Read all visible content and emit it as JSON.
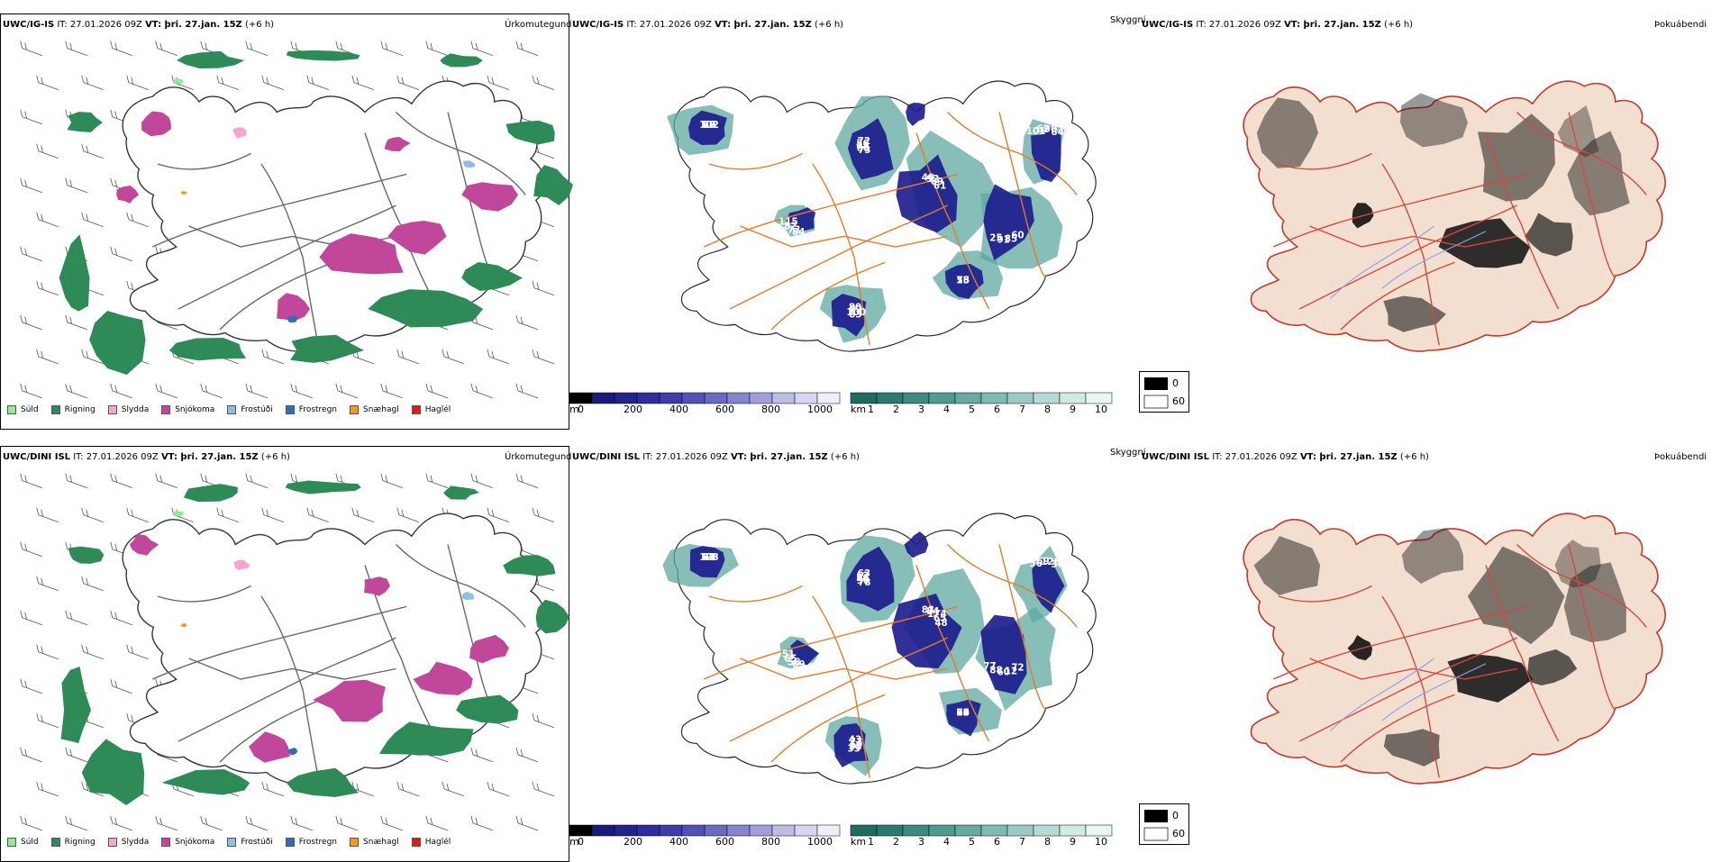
{
  "rows": [
    {
      "model": "UWC/IG-IS",
      "it_label": "IT: 27.01.2026 09Z",
      "vt_label": "VT: þri. 27.jan. 15Z",
      "lead": "(+6 h)",
      "titles": [
        "Úrkomutegund",
        "Skyggni",
        "Þokuábendi"
      ],
      "cloud_labels": [
        "62",
        "73",
        "40",
        "60",
        "55",
        "80",
        "84",
        "101",
        "60",
        "66",
        "92",
        "85",
        "75",
        "82",
        "73",
        "62",
        "102",
        "65",
        "69",
        "91",
        "78",
        "100",
        "82",
        "90",
        "28",
        "56",
        "61",
        "25",
        "15",
        "83",
        "115",
        "84",
        "73",
        "72"
      ],
      "visibility_labels": []
    },
    {
      "model": "UWC/DINI ISL",
      "it_label": "IT: 27.01.2026 09Z",
      "vt_label": "VT: þri. 27.jan. 15Z",
      "lead": "(+6 h)",
      "titles": [
        "Úrkomutegund",
        "Skyggni",
        "Þokuábendi"
      ],
      "cloud_labels": [
        "73",
        "78",
        "83",
        "72",
        "29",
        "43",
        "69",
        "56",
        "77",
        "90",
        "84",
        "12",
        "63",
        "73",
        "58",
        "69",
        "91",
        "56",
        "174",
        "60",
        "66",
        "69",
        "65",
        "128",
        "123",
        "62",
        "65",
        "88",
        "74",
        "95",
        "51",
        "36",
        "60",
        "63",
        "48",
        "77",
        "33",
        "35"
      ],
      "visibility_labels": []
    }
  ],
  "precip_legend": [
    {
      "label": "Súld",
      "color": "#90ee90"
    },
    {
      "label": "Rigning",
      "color": "#2e8b57"
    },
    {
      "label": "Slydda",
      "color": "#f4a6d0"
    },
    {
      "label": "Snjókoma",
      "color": "#c0479a"
    },
    {
      "label": "Frostúði",
      "color": "#8fbde8"
    },
    {
      "label": "Frostregn",
      "color": "#2f6fb5"
    },
    {
      "label": "Snæhagl",
      "color": "#f29b1a"
    },
    {
      "label": "Haglél",
      "color": "#e3191c"
    }
  ],
  "ceiling_bar": {
    "unit": "m",
    "ticks": [
      "0",
      "200",
      "400",
      "600",
      "800",
      "1000"
    ]
  },
  "visibility_bar": {
    "unit": "km",
    "ticks": [
      "1",
      "2",
      "3",
      "4",
      "5",
      "6",
      "7",
      "8",
      "9",
      "10"
    ]
  },
  "fog_legend": {
    "values": [
      "0",
      "60"
    ]
  },
  "colors": {
    "rain": "#2e8b57",
    "snow": "#c0479a",
    "cloud": "#1a1a8c",
    "vis": "#5fa8a0",
    "road": "#e8782a",
    "fogland": "#f3dfcf"
  }
}
